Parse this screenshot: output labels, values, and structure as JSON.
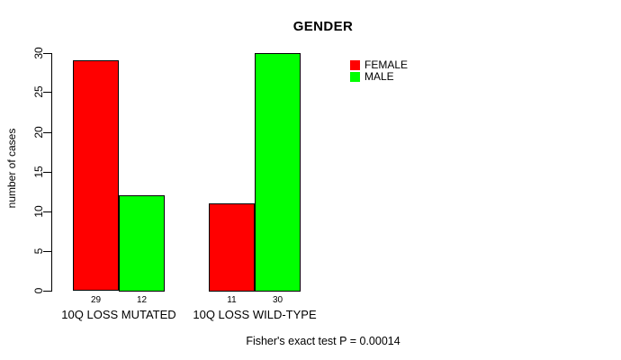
{
  "chart_data": {
    "type": "bar",
    "title": "GENDER",
    "ylabel": "number of cases",
    "xlabel": "",
    "categories": [
      "10Q LOSS MUTATED",
      "10Q LOSS WILD-TYPE"
    ],
    "series": [
      {
        "name": "FEMALE",
        "color": "#ff0000",
        "values": [
          29,
          11
        ]
      },
      {
        "name": "MALE",
        "color": "#00ff00",
        "values": [
          12,
          30
        ]
      }
    ],
    "ylim": [
      0,
      30
    ],
    "yticks": [
      0,
      5,
      10,
      15,
      20,
      25,
      30
    ],
    "grid": false,
    "legend_position": "top-right",
    "bar_outline_color": "#000000",
    "annotation": "Fisher's exact test P = 0.00014"
  }
}
